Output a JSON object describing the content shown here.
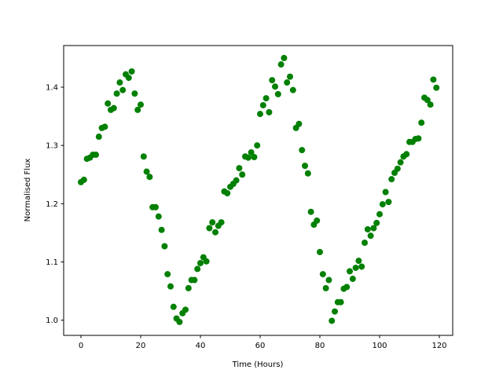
{
  "chart_data": {
    "type": "scatter",
    "xlabel": "Time (Hours)",
    "ylabel": "Normalised Flux",
    "color": "#008000",
    "x": [
      0,
      1,
      2,
      3,
      4,
      5,
      6,
      7,
      8,
      9,
      10,
      11,
      12,
      13,
      14,
      15,
      16,
      17,
      18,
      19,
      20,
      21,
      22,
      23,
      24,
      25,
      26,
      27,
      28,
      29,
      30,
      31,
      32,
      33,
      34,
      35,
      36,
      37,
      38,
      39,
      40,
      41,
      42,
      43,
      44,
      45,
      46,
      47,
      48,
      49,
      50,
      51,
      52,
      53,
      54,
      55,
      56,
      57,
      58,
      59,
      60,
      61,
      62,
      63,
      64,
      65,
      66,
      67,
      68,
      69,
      70,
      71,
      72,
      73,
      74,
      75,
      76,
      77,
      78,
      79,
      80,
      81,
      82,
      83,
      84,
      85,
      86,
      87,
      88,
      89,
      90,
      91,
      92,
      93,
      94,
      95,
      96,
      97,
      98,
      99,
      100,
      101,
      102,
      103,
      104,
      105,
      106,
      107,
      108,
      109,
      110,
      111,
      112,
      113,
      114,
      115,
      116,
      117,
      118,
      119
    ],
    "values": [
      1.237,
      1.241,
      1.277,
      1.279,
      1.284,
      1.284,
      1.315,
      1.33,
      1.332,
      1.372,
      1.361,
      1.364,
      1.389,
      1.408,
      1.395,
      1.422,
      1.416,
      1.427,
      1.389,
      1.361,
      1.37,
      1.281,
      1.255,
      1.246,
      1.194,
      1.194,
      1.178,
      1.155,
      1.127,
      1.079,
      1.058,
      1.023,
      1.003,
      0.997,
      1.012,
      1.018,
      1.055,
      1.069,
      1.069,
      1.088,
      1.098,
      1.108,
      1.101,
      1.158,
      1.168,
      1.151,
      1.162,
      1.168,
      1.221,
      1.218,
      1.229,
      1.234,
      1.24,
      1.261,
      1.25,
      1.281,
      1.279,
      1.288,
      1.28,
      1.3,
      1.354,
      1.369,
      1.381,
      1.357,
      1.412,
      1.401,
      1.388,
      1.439,
      1.45,
      1.408,
      1.418,
      1.395,
      1.33,
      1.337,
      1.292,
      1.265,
      1.252,
      1.186,
      1.164,
      1.171,
      1.117,
      1.079,
      1.055,
      1.069,
      0.999,
      1.015,
      1.031,
      1.031,
      1.054,
      1.057,
      1.084,
      1.071,
      1.09,
      1.102,
      1.092,
      1.133,
      1.156,
      1.145,
      1.158,
      1.167,
      1.182,
      1.199,
      1.22,
      1.203,
      1.242,
      1.253,
      1.26,
      1.271,
      1.281,
      1.285,
      1.306,
      1.306,
      1.311,
      1.312,
      1.339,
      1.382,
      1.378,
      1.37,
      1.413,
      1.399
    ],
    "xlim": [
      -5.79,
      124.47
    ],
    "ylim": [
      0.974,
      1.4714
    ],
    "xticks": [
      0,
      20,
      40,
      60,
      80,
      100,
      120
    ],
    "yticks": [
      {
        "value": 1,
        "label": "1.0"
      },
      1.1,
      1.2,
      1.3,
      1.4
    ]
  }
}
